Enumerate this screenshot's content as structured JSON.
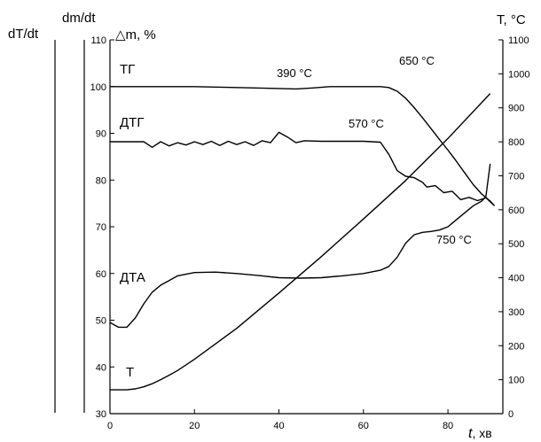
{
  "chart_data": {
    "type": "line",
    "xlabel_var": "t",
    "xlabel_unit": ", хв",
    "xticks": [
      "0",
      "20",
      "40",
      "60",
      "80"
    ],
    "x_range": [
      0,
      93
    ],
    "left_axis": {
      "label": "△m, %",
      "range": [
        30,
        110
      ],
      "ticks": [
        "30",
        "40",
        "50",
        "60",
        "70",
        "80",
        "90",
        "100",
        "110"
      ]
    },
    "right_axis": {
      "label": "T, °C",
      "range": [
        0,
        1100
      ],
      "ticks": [
        "0",
        "100",
        "200",
        "300",
        "400",
        "500",
        "600",
        "700",
        "800",
        "900",
        "1000",
        "1100"
      ]
    },
    "extra_axis_labels": {
      "dm_dt": "dm/dt",
      "dT_dt": "dT/dt"
    },
    "curve_labels": {
      "tg": "ТГ",
      "dtg": "ДТГ",
      "dta": "ДТА",
      "t": "Т"
    },
    "annotations": {
      "t390": "390 °C",
      "t650": "650 °C",
      "t570": "570 °C",
      "t750": "750 °C"
    },
    "series": [
      {
        "name": "ТГ",
        "axis": "left",
        "x": [
          0,
          10,
          20,
          30,
          40,
          44,
          48,
          52,
          56,
          60,
          64,
          66,
          68,
          70,
          72,
          74,
          76,
          78,
          80,
          82,
          84,
          86,
          88,
          90,
          91
        ],
        "y": [
          100,
          100,
          100,
          99.8,
          99.6,
          99.5,
          99.7,
          100,
          100,
          100,
          100,
          99.8,
          99,
          97.5,
          95.5,
          93.3,
          91,
          88.7,
          86.4,
          84,
          81.5,
          79,
          77,
          75.5,
          74.5
        ]
      },
      {
        "name": "ДТГ",
        "axis": "left",
        "x": [
          0,
          8,
          10,
          12,
          14,
          16,
          18,
          20,
          22,
          24,
          26,
          28,
          30,
          32,
          34,
          36,
          38,
          40,
          42,
          44,
          46,
          50,
          55,
          60,
          64,
          66,
          68,
          70,
          72,
          74,
          75,
          77,
          79,
          81,
          83,
          85,
          87,
          89,
          91
        ],
        "y": [
          88.2,
          88.2,
          87,
          88.2,
          87.3,
          88,
          87.5,
          88.2,
          87.6,
          88.3,
          87.4,
          88.3,
          87.6,
          88.2,
          87.4,
          88.4,
          88,
          90.2,
          89.2,
          88,
          88.4,
          88.3,
          88.3,
          88.3,
          88.1,
          85.5,
          82,
          80.8,
          80.5,
          79.5,
          78.5,
          78.8,
          77.3,
          77.6,
          75.8,
          76.3,
          75.6,
          76.2,
          74.5
        ]
      },
      {
        "name": "ДТА",
        "axis": "left",
        "x": [
          0,
          2,
          4,
          6,
          8,
          10,
          12,
          14,
          16,
          20,
          25,
          30,
          35,
          40,
          45,
          50,
          55,
          60,
          64,
          66,
          68,
          70,
          72,
          74,
          76,
          78,
          80,
          82,
          84,
          86,
          88,
          89,
          90
        ],
        "y": [
          49.5,
          48.5,
          48.5,
          50.5,
          53.5,
          56,
          57.5,
          58.5,
          59.5,
          60.2,
          60.3,
          60,
          59.6,
          59.1,
          59,
          59.1,
          59.5,
          60,
          60.7,
          61.5,
          63.5,
          66.5,
          68.3,
          68.8,
          69,
          69.3,
          70,
          71.5,
          73,
          74.5,
          75.5,
          76.5,
          83.5
        ]
      },
      {
        "name": "Т",
        "axis": "right",
        "x": [
          0,
          4,
          6,
          8,
          10,
          12,
          14,
          16,
          20,
          30,
          40,
          50,
          60,
          70,
          80,
          90
        ],
        "y": [
          70,
          70,
          73,
          79,
          88,
          100,
          113,
          127,
          160,
          251,
          355,
          462,
          573,
          686,
          810,
          942
        ]
      }
    ]
  }
}
